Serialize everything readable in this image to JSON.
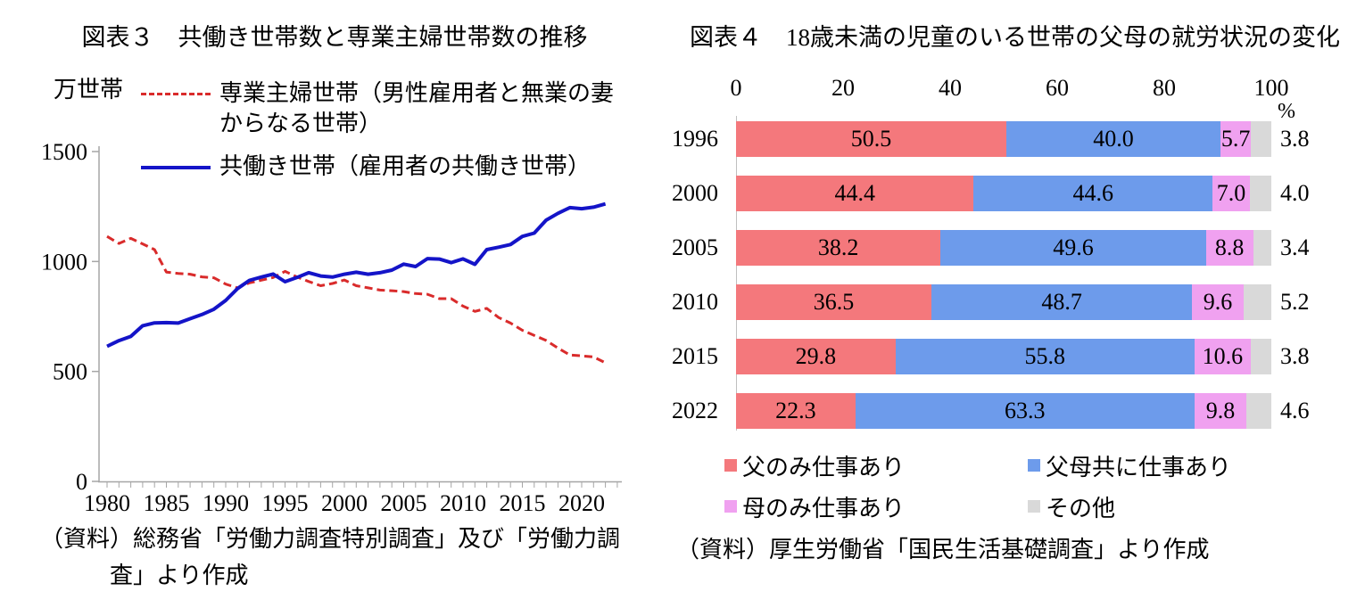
{
  "chart_data": [
    {
      "type": "line",
      "title": "図表３　共働き世帯数と専業主婦世帯数の推移",
      "ylabel": "万世帯",
      "ylim": [
        0,
        1500
      ],
      "yticks": [
        0,
        500,
        1000,
        1500
      ],
      "xticks": [
        1980,
        1985,
        1990,
        1995,
        2000,
        2005,
        2010,
        2015,
        2020
      ],
      "x": [
        1980,
        1981,
        1982,
        1983,
        1984,
        1985,
        1986,
        1987,
        1988,
        1989,
        1990,
        1991,
        1992,
        1993,
        1994,
        1995,
        1996,
        1997,
        1998,
        1999,
        2000,
        2001,
        2002,
        2003,
        2004,
        2005,
        2006,
        2007,
        2008,
        2009,
        2010,
        2011,
        2012,
        2013,
        2014,
        2015,
        2016,
        2017,
        2018,
        2019,
        2020,
        2021,
        2022
      ],
      "series": [
        {
          "name": "専業主婦世帯（男性雇用者と無業の妻からなる世帯）",
          "color": "#d92b2b",
          "dash": true,
          "values": [
            1114,
            1082,
            1105,
            1080,
            1054,
            952,
            946,
            942,
            930,
            926,
            897,
            880,
            903,
            915,
            927,
            955,
            930,
            909,
            890,
            900,
            916,
            890,
            880,
            870,
            867,
            863,
            854,
            851,
            831,
            831,
            797,
            773,
            787,
            745,
            720,
            687,
            664,
            641,
            606,
            575,
            571,
            566,
            539
          ]
        },
        {
          "name": "共働き世帯（雇用者の共働き世帯）",
          "color": "#1414c8",
          "dash": false,
          "values": [
            614,
            640,
            659,
            708,
            721,
            722,
            720,
            740,
            759,
            783,
            823,
            877,
            914,
            929,
            943,
            908,
            927,
            949,
            934,
            929,
            942,
            951,
            942,
            949,
            961,
            988,
            977,
            1013,
            1011,
            995,
            1012,
            987,
            1054,
            1065,
            1077,
            1114,
            1129,
            1188,
            1219,
            1245,
            1240,
            1247,
            1262
          ]
        }
      ],
      "axis_color": "#a6a6a6",
      "source": "（資料）総務省「労働力調査特別調査」及び「労働力調査」より作成"
    },
    {
      "type": "bar",
      "orientation": "horizontal",
      "stacked": true,
      "title": "図表４　18歳未満の児童のいる世帯の父母の就労状況の変化",
      "unit": "%",
      "xticks": [
        0,
        20,
        40,
        60,
        80,
        100
      ],
      "xlim": [
        0,
        100
      ],
      "categories": [
        "1996",
        "2000",
        "2005",
        "2010",
        "2015",
        "2022"
      ],
      "series": [
        {
          "name": "父のみ仕事あり",
          "color": "#f4787c",
          "values": [
            50.5,
            44.4,
            38.2,
            36.5,
            29.8,
            22.3
          ]
        },
        {
          "name": "父母共に仕事あり",
          "color": "#6d9beb",
          "values": [
            40.0,
            44.6,
            49.6,
            48.7,
            55.8,
            63.3
          ]
        },
        {
          "name": "母のみ仕事あり",
          "color": "#f0a1f0",
          "values": [
            5.7,
            7.0,
            8.8,
            9.6,
            10.6,
            9.8
          ]
        },
        {
          "name": "その他",
          "color": "#d9d9d9",
          "values": [
            3.8,
            4.0,
            3.4,
            5.2,
            3.8,
            4.6
          ]
        }
      ],
      "legend_position": "bottom",
      "source": "（資料）厚生労働省「国民生活基礎調査」より作成"
    }
  ]
}
